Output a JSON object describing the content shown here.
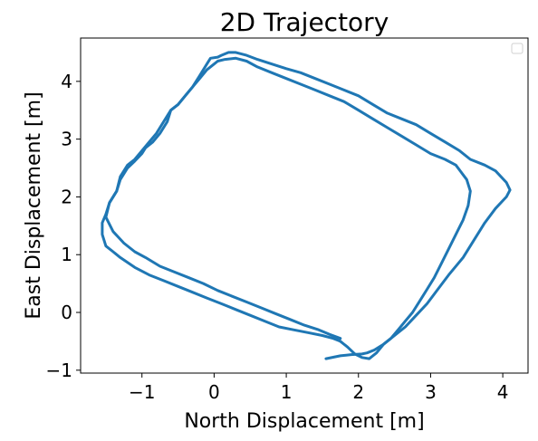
{
  "chart_data": {
    "type": "line",
    "title": "2D Trajectory",
    "xlabel": "North Displacement [m]",
    "ylabel": "East Displacement [m]",
    "xlim": [
      -1.85,
      4.35
    ],
    "ylim": [
      -1.05,
      4.75
    ],
    "xticks": [
      -1,
      0,
      1,
      2,
      3,
      4
    ],
    "xtick_labels": [
      "−1",
      "0",
      "1",
      "2",
      "3",
      "4"
    ],
    "yticks": [
      -1,
      0,
      1,
      2,
      3,
      4
    ],
    "ytick_labels": [
      "−1",
      "0",
      "1",
      "2",
      "3",
      "4"
    ],
    "grid": false,
    "legend": "top-right",
    "series": [
      {
        "color": "#1f77b4",
        "x": [
          1.55,
          1.75,
          1.9,
          2.05,
          2.12,
          2.22,
          2.35,
          2.5,
          2.65,
          2.8,
          2.95,
          3.1,
          3.25,
          3.45,
          3.6,
          3.75,
          3.9,
          4.05,
          4.1,
          4.05,
          3.9,
          3.75,
          3.55,
          3.4,
          3.2,
          3.0,
          2.8,
          2.6,
          2.4,
          2.2,
          2.0,
          1.8,
          1.6,
          1.4,
          1.2,
          1.0,
          0.8,
          0.6,
          0.45,
          0.3,
          0.2,
          0.1,
          0.05,
          -0.05,
          -0.1,
          -0.2,
          -0.3,
          -0.4,
          -0.5,
          -0.6,
          -0.65,
          -0.75,
          -0.85,
          -0.95,
          -1.0,
          -1.1,
          -1.2,
          -1.3,
          -1.35,
          -1.45,
          -1.5,
          -1.55,
          -1.55,
          -1.5,
          -1.4,
          -1.3,
          -1.1,
          -0.9,
          -0.7,
          -0.5,
          -0.3,
          -0.1,
          0.1,
          0.3,
          0.5,
          0.7,
          0.9,
          1.1,
          1.3,
          1.5,
          1.65,
          1.75
        ],
        "y": [
          -0.8,
          -0.75,
          -0.73,
          -0.72,
          -0.7,
          -0.65,
          -0.55,
          -0.4,
          -0.25,
          -0.05,
          0.15,
          0.4,
          0.65,
          0.95,
          1.25,
          1.55,
          1.8,
          2.0,
          2.12,
          2.25,
          2.45,
          2.55,
          2.65,
          2.8,
          2.95,
          3.1,
          3.25,
          3.35,
          3.45,
          3.6,
          3.75,
          3.85,
          3.95,
          4.05,
          4.15,
          4.22,
          4.3,
          4.38,
          4.45,
          4.5,
          4.5,
          4.45,
          4.42,
          4.4,
          4.3,
          4.1,
          3.9,
          3.75,
          3.6,
          3.5,
          3.3,
          3.1,
          2.95,
          2.85,
          2.75,
          2.62,
          2.5,
          2.3,
          2.1,
          1.9,
          1.7,
          1.55,
          1.35,
          1.15,
          1.05,
          0.95,
          0.78,
          0.65,
          0.55,
          0.45,
          0.35,
          0.25,
          0.15,
          0.05,
          -0.05,
          -0.15,
          -0.25,
          -0.3,
          -0.35,
          -0.4,
          -0.45,
          -0.5
        ]
      },
      {
        "color": "#1f77b4",
        "x": [
          1.75,
          1.6,
          1.45,
          1.25,
          1.05,
          0.85,
          0.65,
          0.45,
          0.25,
          0.05,
          -0.15,
          -0.35,
          -0.55,
          -0.75,
          -0.95,
          -1.1,
          -1.25,
          -1.4,
          -1.5,
          -1.45,
          -1.35,
          -1.3,
          -1.2,
          -1.1,
          -1.0,
          -0.9,
          -0.8,
          -0.7,
          -0.6,
          -0.5,
          -0.4,
          -0.3,
          -0.2,
          -0.1,
          0.0,
          0.05,
          0.15,
          0.3,
          0.45,
          0.6,
          0.8,
          1.0,
          1.2,
          1.4,
          1.6,
          1.8,
          2.0,
          2.2,
          2.4,
          2.6,
          2.8,
          3.0,
          3.2,
          3.35,
          3.5,
          3.55,
          3.52,
          3.45,
          3.35,
          3.25,
          3.15,
          3.05,
          2.95,
          2.85,
          2.75,
          2.65,
          2.55,
          2.45,
          2.35,
          2.25,
          2.15,
          2.05,
          1.95,
          1.85,
          1.75
        ],
        "y": [
          -0.45,
          -0.38,
          -0.3,
          -0.22,
          -0.12,
          -0.02,
          0.08,
          0.18,
          0.28,
          0.38,
          0.5,
          0.6,
          0.7,
          0.8,
          0.95,
          1.05,
          1.2,
          1.4,
          1.65,
          1.9,
          2.1,
          2.35,
          2.55,
          2.65,
          2.8,
          2.95,
          3.1,
          3.3,
          3.5,
          3.6,
          3.75,
          3.9,
          4.05,
          4.2,
          4.3,
          4.35,
          4.38,
          4.4,
          4.35,
          4.25,
          4.15,
          4.05,
          3.95,
          3.85,
          3.75,
          3.65,
          3.5,
          3.35,
          3.2,
          3.05,
          2.9,
          2.75,
          2.65,
          2.55,
          2.3,
          2.1,
          1.85,
          1.6,
          1.35,
          1.1,
          0.85,
          0.6,
          0.4,
          0.2,
          0.0,
          -0.15,
          -0.3,
          -0.45,
          -0.55,
          -0.7,
          -0.8,
          -0.78,
          -0.72,
          -0.6,
          -0.5
        ]
      }
    ]
  }
}
